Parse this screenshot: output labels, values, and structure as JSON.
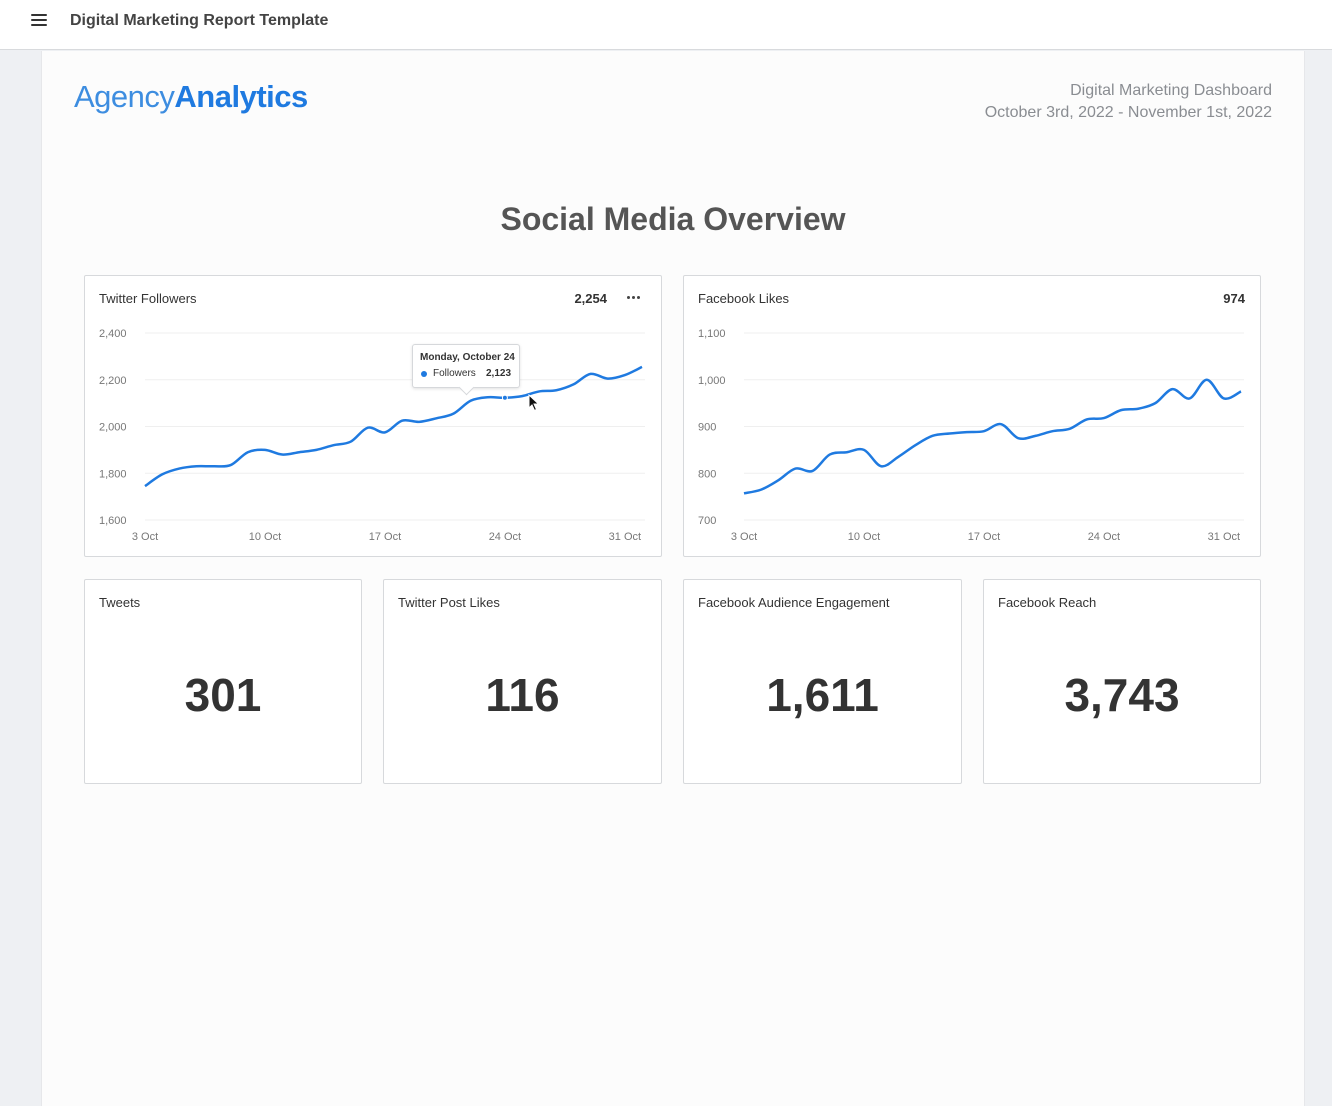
{
  "header": {
    "title": "Digital Marketing Report Template",
    "menu_icon": "hamburger-menu-icon"
  },
  "report": {
    "logo": {
      "part1": "Agency",
      "part2": "Analytics"
    },
    "dashboard_name": "Digital Marketing Dashboard",
    "date_range": "October 3rd, 2022 - November 1st, 2022",
    "section_title": "Social Media Overview",
    "colors": {
      "line": "#1f7ae0",
      "logo_blue": "#1f7ae0"
    }
  },
  "twitter_card": {
    "title": "Twitter Followers",
    "value": "2,254",
    "tooltip": {
      "date": "Monday, October 24",
      "series": "Followers",
      "value": "2,123"
    }
  },
  "facebook_card": {
    "title": "Facebook Likes",
    "value": "974"
  },
  "stats": [
    {
      "title": "Tweets",
      "value": "301"
    },
    {
      "title": "Twitter Post Likes",
      "value": "116"
    },
    {
      "title": "Facebook Audience Engagement",
      "value": "1,611"
    },
    {
      "title": "Facebook Reach",
      "value": "3,743"
    }
  ],
  "chart_data": [
    {
      "type": "line",
      "title": "Twitter Followers",
      "x_ticks": [
        "3 Oct",
        "10 Oct",
        "17 Oct",
        "24 Oct",
        "31 Oct"
      ],
      "y_ticks": [
        "2,400",
        "2,200",
        "2,000",
        "1,800",
        "1,600"
      ],
      "ylim": [
        1600,
        2400
      ],
      "x_day_range": [
        3,
        32
      ],
      "grid": true,
      "series": [
        {
          "name": "Followers",
          "values": [
            [
              3,
              1745
            ],
            [
              4,
              1795
            ],
            [
              5,
              1820
            ],
            [
              6,
              1830
            ],
            [
              7,
              1830
            ],
            [
              8,
              1835
            ],
            [
              9,
              1890
            ],
            [
              10,
              1900
            ],
            [
              11,
              1880
            ],
            [
              12,
              1890
            ],
            [
              13,
              1900
            ],
            [
              14,
              1920
            ],
            [
              15,
              1935
            ],
            [
              16,
              1995
            ],
            [
              17,
              1975
            ],
            [
              18,
              2025
            ],
            [
              19,
              2020
            ],
            [
              20,
              2035
            ],
            [
              21,
              2055
            ],
            [
              22,
              2110
            ],
            [
              23,
              2125
            ],
            [
              24,
              2123
            ],
            [
              25,
              2130
            ],
            [
              26,
              2150
            ],
            [
              27,
              2155
            ],
            [
              28,
              2180
            ],
            [
              29,
              2225
            ],
            [
              30,
              2205
            ],
            [
              31,
              2220
            ],
            [
              32,
              2255
            ]
          ]
        }
      ]
    },
    {
      "type": "line",
      "title": "Facebook Likes",
      "x_ticks": [
        "3 Oct",
        "10 Oct",
        "17 Oct",
        "24 Oct",
        "31 Oct"
      ],
      "y_ticks": [
        "1,100",
        "1,000",
        "900",
        "800",
        "700"
      ],
      "ylim": [
        700,
        1100
      ],
      "x_day_range": [
        3,
        32
      ],
      "grid": true,
      "series": [
        {
          "name": "Likes",
          "values": [
            [
              3,
              757
            ],
            [
              4,
              765
            ],
            [
              5,
              785
            ],
            [
              6,
              810
            ],
            [
              7,
              805
            ],
            [
              8,
              840
            ],
            [
              9,
              845
            ],
            [
              10,
              850
            ],
            [
              11,
              815
            ],
            [
              12,
              835
            ],
            [
              13,
              860
            ],
            [
              14,
              880
            ],
            [
              15,
              885
            ],
            [
              16,
              888
            ],
            [
              17,
              890
            ],
            [
              18,
              905
            ],
            [
              19,
              875
            ],
            [
              20,
              880
            ],
            [
              21,
              890
            ],
            [
              22,
              895
            ],
            [
              23,
              915
            ],
            [
              24,
              918
            ],
            [
              25,
              935
            ],
            [
              26,
              938
            ],
            [
              27,
              950
            ],
            [
              28,
              980
            ],
            [
              29,
              960
            ],
            [
              30,
              1000
            ],
            [
              31,
              960
            ],
            [
              32,
              975
            ]
          ]
        }
      ]
    }
  ]
}
